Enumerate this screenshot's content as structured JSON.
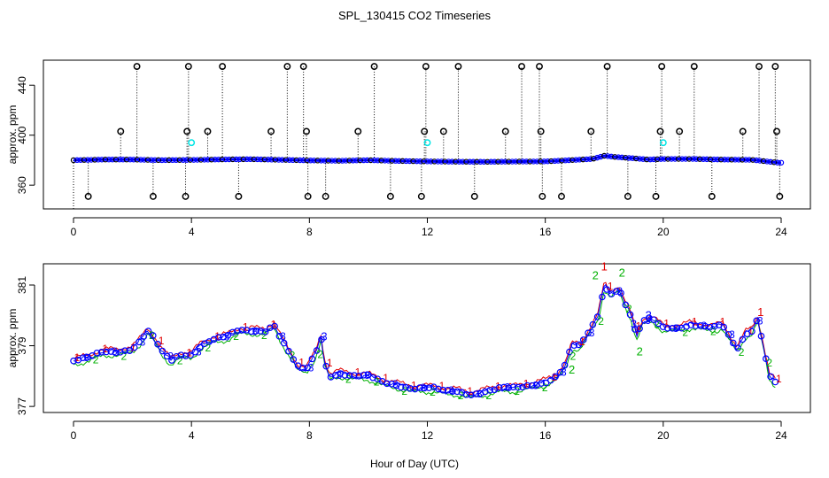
{
  "title": "SPL_130415  CO2 Timeseries",
  "xlabel": "Hour of Day (UTC)",
  "colors": {
    "black": "#000000",
    "blue": "#0000ff",
    "cyan": "#00e5e5",
    "red": "#e00000",
    "green": "#00b000"
  },
  "chart_data": [
    {
      "type": "scatter",
      "name": "full-range",
      "ylabel": "approx. ppm",
      "xlim": [
        0,
        24
      ],
      "ylim": [
        341,
        460
      ],
      "xticks": [
        0,
        4,
        8,
        12,
        16,
        20,
        24
      ],
      "yticks": [
        360,
        400,
        440
      ],
      "baseline_series": [
        [
          0,
          380
        ],
        [
          1,
          380.5
        ],
        [
          2,
          380.5
        ],
        [
          3,
          380
        ],
        [
          4,
          380.2
        ],
        [
          5,
          380.6
        ],
        [
          6,
          380.8
        ],
        [
          7,
          380.3
        ],
        [
          8,
          379.8
        ],
        [
          9,
          379.5
        ],
        [
          10,
          380
        ],
        [
          11,
          379.4
        ],
        [
          12,
          379
        ],
        [
          13,
          378.8
        ],
        [
          14,
          378.7
        ],
        [
          15,
          378.9
        ],
        [
          16,
          379
        ],
        [
          17,
          380.2
        ],
        [
          17.6,
          381
        ],
        [
          18,
          383.5
        ],
        [
          18.4,
          382.5
        ],
        [
          19,
          381.5
        ],
        [
          19.5,
          380.5
        ],
        [
          20,
          381
        ],
        [
          21,
          381
        ],
        [
          22,
          380.5
        ],
        [
          23,
          380.3
        ],
        [
          23.5,
          379
        ],
        [
          23.9,
          378
        ]
      ],
      "spikes_high": [
        2.15,
        3.9,
        5.05,
        7.25,
        7.8,
        10.2,
        11.95,
        13.05,
        15.2,
        15.8,
        18.1,
        19.95,
        21.05,
        23.25,
        23.8
      ],
      "spikes_mid": [
        1.6,
        3.85,
        4.55,
        6.7,
        7.9,
        9.65,
        11.9,
        12.55,
        14.65,
        15.85,
        17.55,
        19.9,
        20.55,
        22.7,
        23.85
      ],
      "spikes_low": [
        0.5,
        2.7,
        3.8,
        5.6,
        7.95,
        8.55,
        10.75,
        11.8,
        13.6,
        15.9,
        16.55,
        18.8,
        19.75,
        21.65,
        23.95
      ],
      "high_value": 455,
      "mid_value": 403,
      "low_value": 351,
      "cyan_points": [
        [
          4.0,
          394
        ],
        [
          12.0,
          394
        ],
        [
          20.0,
          394
        ]
      ]
    },
    {
      "type": "line",
      "name": "zoomed",
      "ylabel": "approx. ppm",
      "xlim": [
        0,
        24
      ],
      "ylim": [
        376.8,
        381.7
      ],
      "xticks": [
        0,
        4,
        8,
        12,
        16,
        20,
        24
      ],
      "yticks": [
        377,
        379,
        381
      ],
      "series_markers": [
        "1",
        "2",
        "3"
      ],
      "series": [
        {
          "name": "1",
          "offset": 0.15
        },
        {
          "name": "2",
          "offset": -0.2
        },
        {
          "name": "3",
          "offset": 0.0
        }
      ],
      "points": [
        [
          0,
          378.5
        ],
        [
          0.5,
          378.6
        ],
        [
          1,
          378.8
        ],
        [
          1.5,
          378.8
        ],
        [
          2,
          378.9
        ],
        [
          2.3,
          379.2
        ],
        [
          2.5,
          379.5
        ],
        [
          2.7,
          379.3
        ],
        [
          3,
          378.8
        ],
        [
          3.3,
          378.5
        ],
        [
          3.6,
          378.7
        ],
        [
          4,
          378.7
        ],
        [
          4.3,
          379
        ],
        [
          4.7,
          379.2
        ],
        [
          5.2,
          379.3
        ],
        [
          5.6,
          379.5
        ],
        [
          6,
          379.5
        ],
        [
          6.5,
          379.5
        ],
        [
          6.8,
          379.7
        ],
        [
          7,
          379.3
        ],
        [
          7.3,
          378.8
        ],
        [
          7.6,
          378.3
        ],
        [
          7.9,
          378.2
        ],
        [
          8,
          378.4
        ],
        [
          8.2,
          378.7
        ],
        [
          8.4,
          379.3
        ],
        [
          8.5,
          378.5
        ],
        [
          8.7,
          378
        ],
        [
          9,
          378.1
        ],
        [
          9.5,
          378
        ],
        [
          10,
          378
        ],
        [
          10.5,
          377.8
        ],
        [
          11,
          377.7
        ],
        [
          11.5,
          377.6
        ],
        [
          11.9,
          377.6
        ],
        [
          12.2,
          377.6
        ],
        [
          12.6,
          377.5
        ],
        [
          13,
          377.5
        ],
        [
          13.5,
          377.4
        ],
        [
          14,
          377.5
        ],
        [
          14.5,
          377.6
        ],
        [
          15,
          377.6
        ],
        [
          15.5,
          377.7
        ],
        [
          16,
          377.8
        ],
        [
          16.4,
          378
        ],
        [
          16.7,
          378.4
        ],
        [
          16.9,
          379
        ],
        [
          17.2,
          379
        ],
        [
          17.5,
          379.5
        ],
        [
          17.8,
          380
        ],
        [
          18,
          381
        ],
        [
          18.2,
          380.7
        ],
        [
          18.5,
          380.9
        ],
        [
          18.7,
          380.4
        ],
        [
          18.9,
          380
        ],
        [
          19.1,
          379.3
        ],
        [
          19.3,
          379.8
        ],
        [
          19.6,
          379.9
        ],
        [
          20,
          379.6
        ],
        [
          20.5,
          379.6
        ],
        [
          21,
          379.7
        ],
        [
          21.5,
          379.6
        ],
        [
          21.8,
          379.6
        ],
        [
          22,
          379.7
        ],
        [
          22.3,
          379.2
        ],
        [
          22.5,
          378.9
        ],
        [
          22.8,
          379.4
        ],
        [
          23,
          379.5
        ],
        [
          23.2,
          379.9
        ],
        [
          23.4,
          379
        ],
        [
          23.6,
          378
        ],
        [
          23.8,
          377.8
        ]
      ],
      "outliers": [
        {
          "x": 18.0,
          "y": 381.6,
          "label": "1"
        },
        {
          "x": 17.7,
          "y": 381.3,
          "label": "2"
        },
        {
          "x": 18.6,
          "y": 381.4,
          "label": "2"
        },
        {
          "x": 19.0,
          "y": 379.7,
          "label": "3"
        },
        {
          "x": 19.2,
          "y": 378.8,
          "label": "2"
        },
        {
          "x": 16.9,
          "y": 378.2,
          "label": "2"
        },
        {
          "x": 19.5,
          "y": 380.0,
          "label": "3"
        },
        {
          "x": 23.3,
          "y": 380.1,
          "label": "1"
        },
        {
          "x": 8.5,
          "y": 379.3,
          "label": "3"
        }
      ]
    }
  ]
}
